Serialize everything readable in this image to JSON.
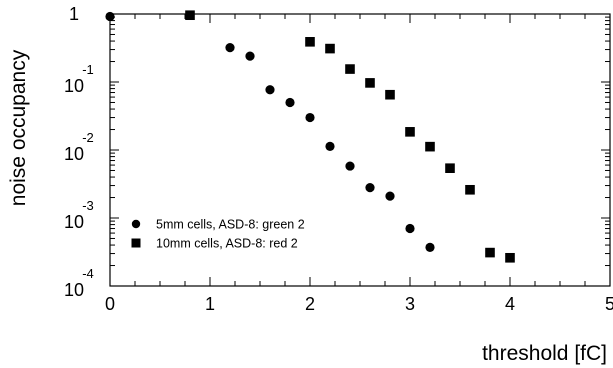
{
  "chart_data": {
    "type": "scatter",
    "title": "",
    "xlabel": "threshold [fC]",
    "ylabel": "noise occupancy",
    "xlim": [
      0,
      5
    ],
    "ylim": [
      0.0001,
      1
    ],
    "yscale": "log",
    "grid": false,
    "legend_position": "lower-left",
    "x_ticks": [
      {
        "value": 0,
        "label": "0"
      },
      {
        "value": 1,
        "label": "1"
      },
      {
        "value": 2,
        "label": "2"
      },
      {
        "value": 3,
        "label": "3"
      },
      {
        "value": 4,
        "label": "4"
      },
      {
        "value": 5,
        "label": "5"
      }
    ],
    "y_ticks": [
      {
        "value": 1,
        "base": "",
        "exp": "",
        "plain": "1"
      },
      {
        "value": 0.1,
        "base": "10",
        "exp": "-1",
        "plain": ""
      },
      {
        "value": 0.01,
        "base": "10",
        "exp": "-2",
        "plain": ""
      },
      {
        "value": 0.001,
        "base": "10",
        "exp": "-3",
        "plain": ""
      },
      {
        "value": 0.0001,
        "base": "10",
        "exp": "-4",
        "plain": ""
      }
    ],
    "series": [
      {
        "name": "5mm cells, ASD-8: green 2",
        "marker": "circle",
        "color": "#000000",
        "points": [
          [
            0.0,
            0.92
          ],
          [
            1.2,
            0.32
          ],
          [
            1.4,
            0.24
          ],
          [
            1.6,
            0.077
          ],
          [
            1.8,
            0.05
          ],
          [
            2.0,
            0.03
          ],
          [
            2.2,
            0.0113
          ],
          [
            2.4,
            0.0058
          ],
          [
            2.6,
            0.0028
          ],
          [
            2.8,
            0.0021
          ],
          [
            3.0,
            0.0007
          ],
          [
            3.2,
            0.00037
          ]
        ]
      },
      {
        "name": "10mm cells, ASD-8: red 2",
        "marker": "square",
        "color": "#000000",
        "points": [
          [
            0.8,
            0.96
          ],
          [
            2.0,
            0.39
          ],
          [
            2.2,
            0.31
          ],
          [
            2.4,
            0.155
          ],
          [
            2.6,
            0.097
          ],
          [
            2.8,
            0.065
          ],
          [
            3.0,
            0.0185
          ],
          [
            3.2,
            0.0112
          ],
          [
            3.4,
            0.0054
          ],
          [
            3.6,
            0.0026
          ],
          [
            3.8,
            0.00031
          ],
          [
            4.0,
            0.00026
          ]
        ]
      }
    ]
  }
}
